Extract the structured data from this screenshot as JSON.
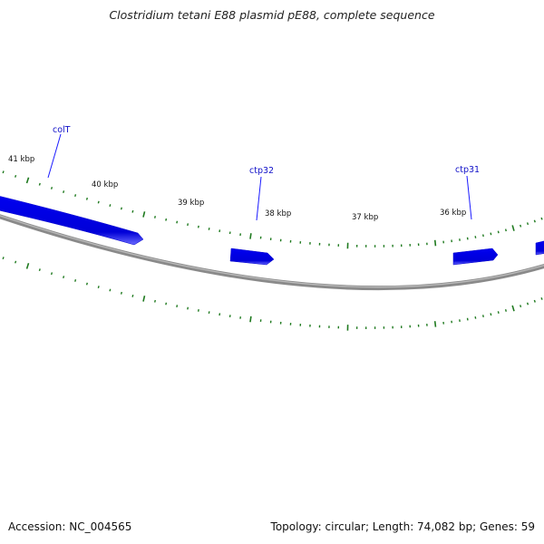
{
  "title": "Clostridium tetani E88 plasmid pE88, complete sequence",
  "accession": "Accession: NC_004565",
  "topology": "Topology: circular; Length: 74,082 bp; Genes: 59",
  "colors": {
    "backbone": "#7a7a7a",
    "gene": "#0000ee",
    "gene_label": "#1010c8",
    "tick": "#1f7a1f"
  },
  "scale_labels": [
    {
      "name": "41",
      "text": "41 kbp"
    },
    {
      "name": "40",
      "text": "40 kbp"
    },
    {
      "name": "39",
      "text": "39 kbp"
    },
    {
      "name": "38",
      "text": "38 kbp"
    },
    {
      "name": "37",
      "text": "37 kbp"
    },
    {
      "name": "36",
      "text": "36 kbp"
    }
  ],
  "genes": [
    {
      "name": "colT",
      "label": "colT"
    },
    {
      "name": "ctp32",
      "label": "ctp32"
    },
    {
      "name": "ctp31",
      "label": "ctp31"
    }
  ]
}
